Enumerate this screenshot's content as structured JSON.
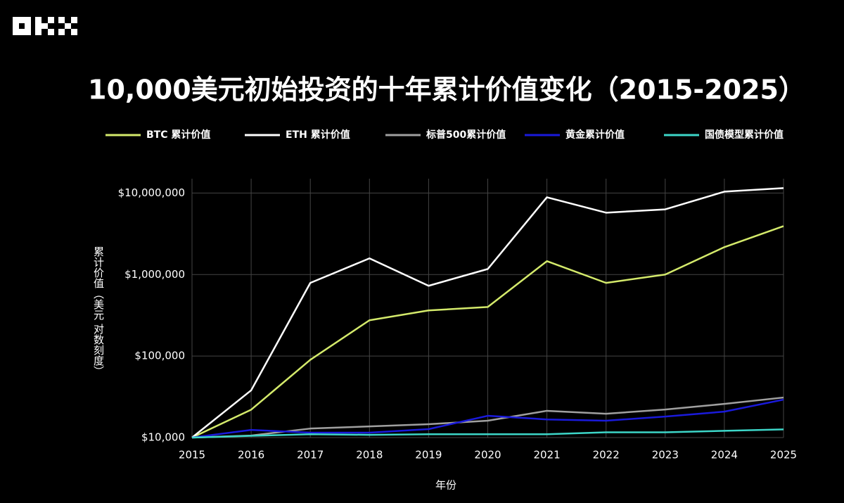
{
  "chart_data": {
    "type": "line",
    "title": "10,000美元初始投资的十年累计价值变化（2015-2025）",
    "x_label": "年份",
    "y_label": "累计价值（美元 对数刻度）",
    "x": [
      2015,
      2016,
      2017,
      2018,
      2019,
      2020,
      2021,
      2022,
      2023,
      2024,
      2025
    ],
    "xlim": [
      2015,
      2025
    ],
    "xticks": [
      2015,
      2016,
      2017,
      2018,
      2019,
      2020,
      2021,
      2022,
      2023,
      2024,
      2025
    ],
    "ylim": [
      10000,
      15000000
    ],
    "yticks": [
      {
        "value": 10000,
        "label": "$10,000"
      },
      {
        "value": 100000,
        "label": "$100,000"
      },
      {
        "value": 1000000,
        "label": "$1,000,000"
      },
      {
        "value": 10000000,
        "label": "$10,000,000"
      }
    ],
    "log_scale_y": true,
    "grid": true,
    "legend": "top",
    "series": [
      {
        "name": "BTC 累计价值",
        "color": "#d4ea6b",
        "values": [
          10000,
          22000,
          90000,
          275000,
          363000,
          400000,
          1460000,
          790000,
          1000000,
          2170000,
          3930000
        ]
      },
      {
        "name": "ETH 累计价值",
        "color": "#ffffff",
        "values": [
          10000,
          38000,
          790000,
          1580000,
          728000,
          1170000,
          8870000,
          5740000,
          6310000,
          10400000,
          11500000
        ]
      },
      {
        "name": "标普500累计价值",
        "color": "#a0a0a0",
        "values": [
          10000,
          10600,
          12900,
          13700,
          14600,
          16100,
          21300,
          19600,
          22100,
          25900,
          31000
        ]
      },
      {
        "name": "黄金累计价值",
        "color": "#1a1adb",
        "values": [
          10000,
          12400,
          11500,
          11500,
          12700,
          18500,
          16700,
          16100,
          18100,
          20800,
          29200
        ]
      },
      {
        "name": "国债模型累计价值",
        "color": "#3dd6c8",
        "values": [
          10000,
          10500,
          11000,
          10800,
          11000,
          11000,
          11000,
          11600,
          11600,
          12100,
          12600
        ]
      }
    ]
  }
}
